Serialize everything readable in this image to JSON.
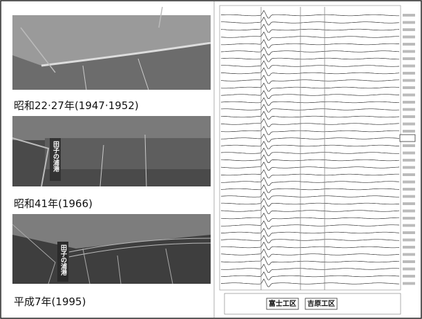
{
  "panels": [
    {
      "caption": "昭和22·27年(1947·1952)"
    },
    {
      "caption": "昭和41年(1966)",
      "label": "田子の浦港"
    },
    {
      "caption": "平成7年(1995)",
      "label": "田子の浦港"
    }
  ],
  "sections": [
    "富士工区",
    "吉原工区"
  ]
}
